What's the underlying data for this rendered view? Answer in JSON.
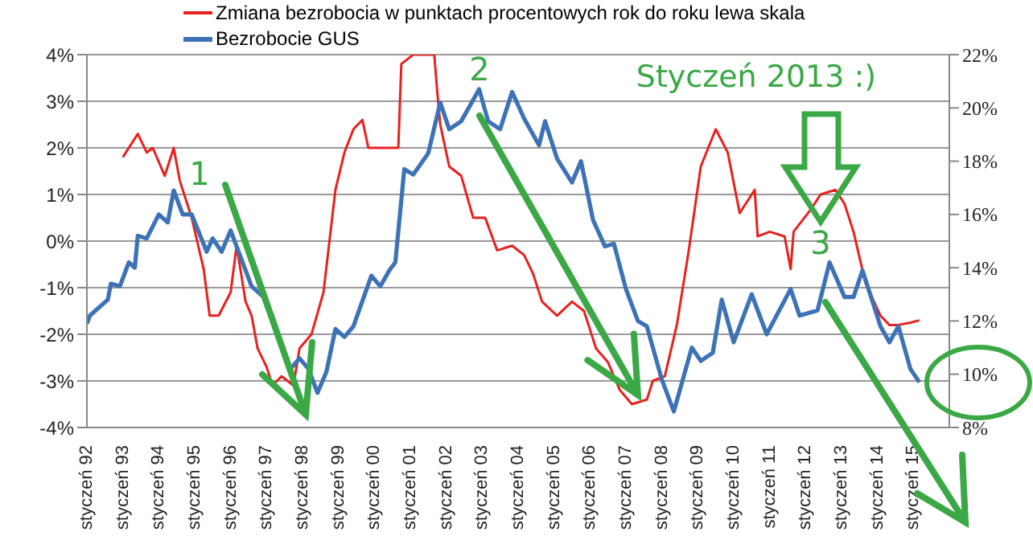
{
  "chart_data": {
    "type": "line",
    "series": [
      {
        "name": "Zmiana bezrobocia w punktach procentowych rok do roku lewa skala",
        "color": "#e8211f",
        "x": [
          "1993-01",
          "1993-03",
          "1993-06",
          "1993-09",
          "1993-11",
          "1994-03",
          "1994-06",
          "1994-08",
          "1994-12",
          "1995-04",
          "1995-06",
          "1995-09",
          "1996-01",
          "1996-03",
          "1996-06",
          "1996-08",
          "1996-10",
          "1997-01",
          "1997-03",
          "1997-06",
          "1997-10",
          "1997-12",
          "1998-04",
          "1998-08",
          "1998-12",
          "1999-03",
          "1999-06",
          "1999-09",
          "1999-11",
          "2000-04",
          "2000-09",
          "2000-10",
          "2001-02",
          "2001-09",
          "2001-10",
          "2001-11",
          "2002-02",
          "2002-06",
          "2002-10",
          "2003-02",
          "2003-06",
          "2003-11",
          "2004-03",
          "2004-06",
          "2004-09",
          "2005-02",
          "2005-07",
          "2005-11",
          "2006-03",
          "2006-07",
          "2006-11",
          "2007-03",
          "2007-08",
          "2007-10",
          "2008-02",
          "2008-06",
          "2008-10",
          "2009-02",
          "2009-07",
          "2009-11",
          "2010-03",
          "2010-08",
          "2010-09",
          "2011-01",
          "2011-06",
          "2011-08",
          "2011-09",
          "2012-03",
          "2012-06",
          "2012-11",
          "2013-02",
          "2013-05",
          "2013-09",
          "2014-02",
          "2014-05",
          "2014-08",
          "2014-12",
          "2015-03"
        ],
        "values": [
          1.8,
          2.0,
          2.3,
          1.9,
          2.0,
          1.4,
          2.0,
          1.3,
          0.5,
          -0.6,
          -1.6,
          -1.6,
          -1.1,
          -0.1,
          -1.3,
          -1.6,
          -2.3,
          -2.7,
          -3.1,
          -2.9,
          -3.1,
          -2.3,
          -2.0,
          -1.1,
          1.1,
          1.9,
          2.4,
          2.6,
          2.0,
          2.0,
          2.0,
          3.8,
          4.0,
          4.0,
          3.2,
          2.5,
          1.6,
          1.4,
          0.5,
          0.5,
          -0.2,
          -0.1,
          -0.3,
          -0.7,
          -1.3,
          -1.6,
          -1.3,
          -1.5,
          -2.3,
          -2.6,
          -3.2,
          -3.5,
          -3.4,
          -3.0,
          -2.9,
          -1.8,
          -0.2,
          1.6,
          2.4,
          1.9,
          0.6,
          1.1,
          0.1,
          0.2,
          0.1,
          -0.6,
          0.2,
          0.7,
          1.0,
          1.1,
          0.8,
          0.2,
          -0.9,
          -1.6,
          -1.8,
          -1.8,
          -1.75,
          -1.7
        ]
      },
      {
        "name": "Bezrobocie GUS",
        "color": "#3d72b6",
        "axis": "y2",
        "x": [
          "1992-01",
          "1992-02",
          "1992-08",
          "1992-09",
          "1992-12",
          "1993-03",
          "1993-05",
          "1993-06",
          "1993-09",
          "1994-01",
          "1994-04",
          "1994-06",
          "1994-09",
          "1994-12",
          "1995-05",
          "1995-07",
          "1995-10",
          "1996-01",
          "1996-03",
          "1996-08",
          "1996-12",
          "1997-03",
          "1997-09",
          "1997-12",
          "1998-03",
          "1998-06",
          "1998-09",
          "1998-12",
          "1999-03",
          "1999-06",
          "1999-12",
          "2000-03",
          "2000-06",
          "2000-08",
          "2000-11",
          "2001-02",
          "2001-07",
          "2001-11",
          "2002-02",
          "2002-06",
          "2002-12",
          "2003-03",
          "2003-07",
          "2003-11",
          "2004-03",
          "2004-08",
          "2004-10",
          "2005-02",
          "2005-07",
          "2005-10",
          "2006-02",
          "2006-06",
          "2006-09",
          "2007-01",
          "2007-05",
          "2007-08",
          "2008-01",
          "2008-05",
          "2008-11",
          "2009-02",
          "2009-06",
          "2009-09",
          "2010-01",
          "2010-07",
          "2010-12",
          "2011-08",
          "2011-11",
          "2012-05",
          "2012-09",
          "2013-02",
          "2013-05",
          "2013-08",
          "2014-02",
          "2014-05",
          "2014-08",
          "2014-12",
          "2015-03"
        ],
        "values": [
          11.9,
          12.2,
          12.8,
          13.4,
          13.3,
          14.2,
          14.0,
          15.2,
          15.1,
          16.0,
          15.7,
          16.9,
          16.0,
          16.0,
          14.6,
          15.1,
          14.6,
          15.4,
          14.8,
          13.3,
          12.9,
          12.0,
          10.2,
          10.6,
          10.2,
          9.3,
          10.1,
          11.7,
          11.4,
          11.8,
          13.7,
          13.3,
          13.9,
          14.2,
          17.7,
          17.5,
          18.3,
          20.2,
          19.2,
          19.5,
          20.7,
          19.5,
          19.2,
          20.6,
          19.6,
          18.6,
          19.5,
          18.1,
          17.2,
          18.0,
          15.8,
          14.8,
          14.9,
          13.2,
          12.0,
          11.8,
          9.8,
          8.6,
          11.0,
          10.5,
          10.8,
          12.8,
          11.2,
          13.0,
          11.5,
          13.2,
          12.2,
          12.4,
          14.2,
          12.9,
          12.9,
          13.9,
          11.8,
          11.2,
          11.8,
          10.2,
          9.7
        ]
      }
    ],
    "xlim": [
      "1992-01",
      "2016-01"
    ],
    "xticks": [
      {
        "value": "1992-01",
        "label": "styczeń 92"
      },
      {
        "value": "1993-01",
        "label": "styczeń 93"
      },
      {
        "value": "1994-01",
        "label": "styczeń 94"
      },
      {
        "value": "1995-01",
        "label": "styczeń 95"
      },
      {
        "value": "1996-01",
        "label": "styczeń 96"
      },
      {
        "value": "1997-01",
        "label": "styczeń 97"
      },
      {
        "value": "1998-01",
        "label": "styczeń 98"
      },
      {
        "value": "1999-01",
        "label": "styczeń 99"
      },
      {
        "value": "2000-01",
        "label": "styczeń 00"
      },
      {
        "value": "2001-01",
        "label": "styczeń 01"
      },
      {
        "value": "2002-01",
        "label": "styczeń 02"
      },
      {
        "value": "2003-01",
        "label": "styczeń 03"
      },
      {
        "value": "2004-01",
        "label": "styczeń 04"
      },
      {
        "value": "2005-01",
        "label": "styczeń 05"
      },
      {
        "value": "2006-01",
        "label": "styczeń 06"
      },
      {
        "value": "2007-01",
        "label": "styczeń 07"
      },
      {
        "value": "2008-01",
        "label": "styczeń 08"
      },
      {
        "value": "2009-01",
        "label": "styczeń 09"
      },
      {
        "value": "2010-01",
        "label": "styczeń 10"
      },
      {
        "value": "2011-01",
        "label": "styczeń 11"
      },
      {
        "value": "2012-01",
        "label": "styczeń 12"
      },
      {
        "value": "2013-01",
        "label": "styczeń 13"
      },
      {
        "value": "2014-01",
        "label": "styczeń 14"
      },
      {
        "value": "2015-01",
        "label": "styczeń 15"
      }
    ],
    "ylim": [
      -4,
      4
    ],
    "yticks": [
      {
        "value": -4,
        "label": "-4%"
      },
      {
        "value": -3,
        "label": "-3%"
      },
      {
        "value": -2,
        "label": "-2%"
      },
      {
        "value": -1,
        "label": "-1%"
      },
      {
        "value": 0,
        "label": "0%"
      },
      {
        "value": 1,
        "label": "1%"
      },
      {
        "value": 2,
        "label": "2%"
      },
      {
        "value": 3,
        "label": "3%"
      },
      {
        "value": 4,
        "label": "4%"
      }
    ],
    "y2lim": [
      8,
      22
    ],
    "y2ticks": [
      {
        "value": 8,
        "label": "8%"
      },
      {
        "value": 10,
        "label": "10%"
      },
      {
        "value": 12,
        "label": "12%"
      },
      {
        "value": 14,
        "label": "14%"
      },
      {
        "value": 16,
        "label": "16%"
      },
      {
        "value": 18,
        "label": "18%"
      },
      {
        "value": 20,
        "label": "20%"
      },
      {
        "value": 22,
        "label": "22%"
      }
    ],
    "grid": "y",
    "legend": "top",
    "marker": "none",
    "line_style": "solid",
    "annotations": [
      "1",
      {
        "text": "2",
        "x": "2007-05",
        "y": -3.3
      },
      "Styczeń 2013 :)",
      "3"
    ]
  }
}
